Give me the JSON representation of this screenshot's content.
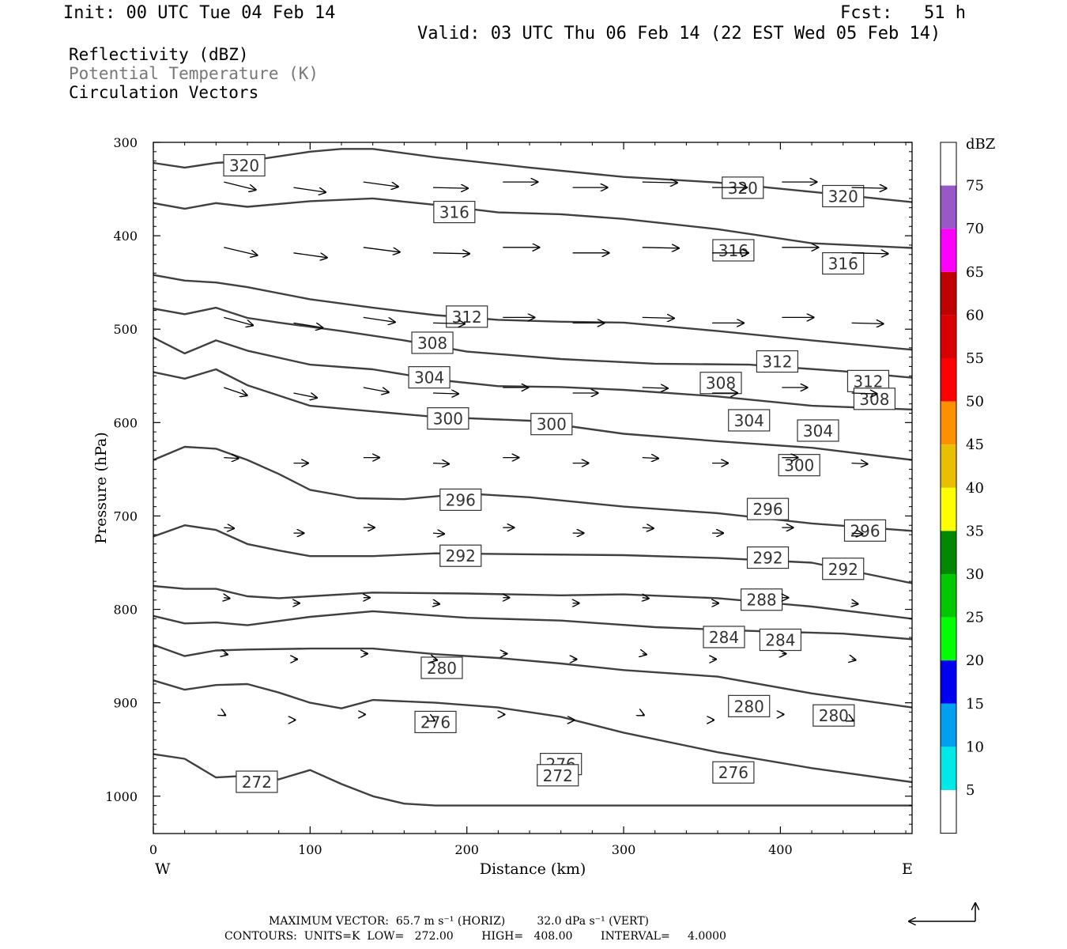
{
  "header": {
    "init": "Init: 00 UTC Tue 04 Feb 14",
    "fcst": "Fcst:   51 h",
    "valid": "Valid: 03 UTC Thu 06 Feb 14 (22 EST Wed 05 Feb 14)"
  },
  "fields": {
    "reflectivity": "Reflectivity (dBZ)",
    "theta": "Potential Temperature (K)",
    "vectors": "Circulation Vectors"
  },
  "footer": {
    "max_vector_line": "MAXIMUM VECTOR:  65.7 m s⁻¹ (HORIZ)         32.0 dPa s⁻¹ (VERT)",
    "contours_line": "CONTOURS:  UNITS=K  LOW=   272.00        HIGH=   408.00        INTERVAL=     4.0000"
  },
  "colors": {
    "contour": "#404040",
    "reflectivity_scale": [
      "#ffffff",
      "#00e8e8",
      "#00a0f0",
      "#0000f0",
      "#00ff00",
      "#00c800",
      "#008800",
      "#ffff00",
      "#e8c000",
      "#ff9000",
      "#ff0000",
      "#d80000",
      "#c00000",
      "#ff00ff",
      "#9858c8",
      "#ffffff"
    ]
  },
  "chart_data": {
    "type": "line",
    "xlabel": "Distance (km)",
    "ylabel": "Pressure (hPa)",
    "xlim": [
      0,
      484
    ],
    "ylim": [
      1040,
      300
    ],
    "x_ticks": [
      "0",
      "100",
      "200",
      "300",
      "400"
    ],
    "y_ticks": [
      "300",
      "400",
      "500",
      "600",
      "700",
      "800",
      "900",
      "1000"
    ],
    "x_ticks_values": [
      0,
      100,
      200,
      300,
      400
    ],
    "y_ticks_values": [
      300,
      400,
      500,
      600,
      700,
      800,
      900,
      1000
    ],
    "left_end_label": "W",
    "right_end_label": "E",
    "colorbar": {
      "unit": "dBZ",
      "labels": [
        "5",
        "10",
        "15",
        "20",
        "25",
        "30",
        "35",
        "40",
        "45",
        "50",
        "55",
        "60",
        "65",
        "70",
        "75"
      ]
    },
    "series": [
      {
        "name": "320",
        "x": [
          0,
          20,
          40,
          60,
          80,
          100,
          120,
          140,
          180,
          240,
          300,
          360,
          420,
          484
        ],
        "y": [
          322,
          327,
          322,
          320,
          315,
          310,
          307,
          307,
          316,
          327,
          337,
          343,
          353,
          364
        ]
      },
      {
        "name": "316",
        "x": [
          0,
          20,
          40,
          60,
          100,
          140,
          180,
          220,
          260,
          300,
          360,
          420,
          484
        ],
        "y": [
          365,
          371,
          365,
          369,
          363,
          360,
          367,
          375,
          377,
          382,
          393,
          408,
          413
        ]
      },
      {
        "name": "312",
        "x": [
          0,
          20,
          40,
          60,
          100,
          140,
          180,
          220,
          260,
          300,
          360,
          420,
          484
        ],
        "y": [
          442,
          448,
          450,
          455,
          468,
          477,
          485,
          490,
          492,
          493,
          502,
          512,
          522
        ]
      },
      {
        "name": "308",
        "x": [
          0,
          20,
          40,
          60,
          80,
          120,
          160,
          200,
          260,
          320,
          380,
          440,
          484
        ],
        "y": [
          478,
          484,
          477,
          488,
          493,
          502,
          512,
          524,
          532,
          537,
          538,
          545,
          552
        ]
      },
      {
        "name": "304",
        "x": [
          0,
          20,
          40,
          60,
          100,
          140,
          180,
          220,
          260,
          300,
          360,
          420,
          484
        ],
        "y": [
          509,
          526,
          512,
          523,
          538,
          543,
          554,
          561,
          562,
          565,
          572,
          582,
          586
        ]
      },
      {
        "name": "300",
        "x": [
          0,
          20,
          40,
          60,
          100,
          140,
          180,
          240,
          300,
          360,
          420,
          484
        ],
        "y": [
          546,
          553,
          543,
          560,
          582,
          588,
          594,
          598,
          612,
          620,
          627,
          640
        ]
      },
      {
        "name": "296",
        "x": [
          0,
          20,
          40,
          60,
          80,
          100,
          130,
          160,
          200,
          240,
          300,
          360,
          420,
          484
        ],
        "y": [
          640,
          626,
          628,
          640,
          655,
          672,
          681,
          682,
          676,
          680,
          690,
          697,
          708,
          716
        ]
      },
      {
        "name": "292",
        "x": [
          0,
          20,
          40,
          60,
          80,
          100,
          140,
          180,
          240,
          300,
          360,
          420,
          484
        ],
        "y": [
          722,
          710,
          715,
          730,
          737,
          743,
          743,
          740,
          741,
          742,
          745,
          750,
          772
        ]
      },
      {
        "name": "288",
        "x": [
          0,
          20,
          40,
          60,
          80,
          100,
          140,
          200,
          260,
          300,
          360,
          420,
          484
        ],
        "y": [
          775,
          778,
          778,
          786,
          788,
          786,
          782,
          783,
          785,
          784,
          788,
          797,
          810
        ]
      },
      {
        "name": "284",
        "x": [
          0,
          20,
          40,
          60,
          100,
          140,
          200,
          260,
          320,
          380,
          440,
          484
        ],
        "y": [
          807,
          815,
          814,
          817,
          808,
          802,
          809,
          812,
          819,
          823,
          826,
          832
        ]
      },
      {
        "name": "280",
        "x": [
          0,
          20,
          40,
          60,
          100,
          140,
          180,
          220,
          260,
          300,
          360,
          420,
          484
        ],
        "y": [
          838,
          850,
          844,
          843,
          842,
          842,
          848,
          852,
          858,
          865,
          872,
          890,
          905
        ]
      },
      {
        "name": "276",
        "x": [
          0,
          20,
          40,
          60,
          80,
          100,
          120,
          140,
          180,
          220,
          260,
          300,
          360,
          420,
          484
        ],
        "y": [
          876,
          886,
          881,
          880,
          889,
          900,
          906,
          897,
          900,
          905,
          915,
          932,
          953,
          970,
          985
        ]
      },
      {
        "name": "272",
        "x": [
          0,
          20,
          40,
          60,
          80,
          100,
          120,
          140,
          160,
          180,
          240,
          300,
          360,
          420,
          484
        ],
        "y": [
          955,
          960,
          980,
          978,
          982,
          972,
          987,
          1000,
          1008,
          1010,
          1010,
          1010,
          1010,
          1010,
          1010
        ]
      }
    ]
  }
}
